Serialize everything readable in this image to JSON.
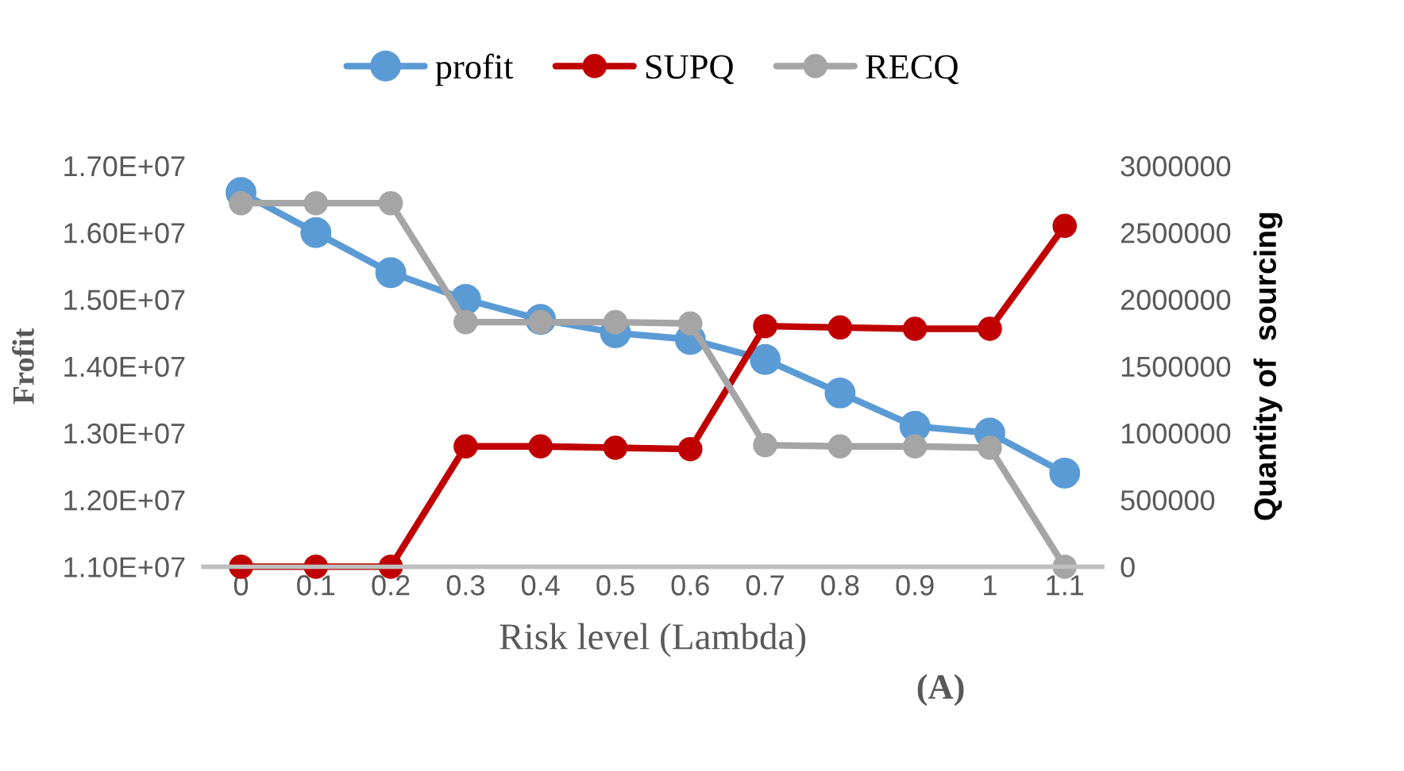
{
  "chart_data": {
    "type": "line",
    "xlabel": "Risk level (Lambda)",
    "ylabel": "Frofit",
    "y2label": "Quantity of  sourcing",
    "annotations": [
      "(A)"
    ],
    "categories": [
      "0",
      "0.1",
      "0.2",
      "0.3",
      "0.4",
      "0.5",
      "0.6",
      "0.7",
      "0.8",
      "0.9",
      "1",
      "1.1"
    ],
    "series": [
      {
        "name": "profit",
        "color": "#5b9bd5",
        "values": [
          16600000,
          16000000,
          15400000,
          15000000,
          14700000,
          14500000,
          14400000,
          14100000,
          13600000,
          13100000,
          13000000,
          12400000
        ]
      },
      {
        "name": "SUPQ",
        "color": "#c00000",
        "axis": "y2",
        "values": [
          0,
          0,
          0,
          900000,
          900000,
          890000,
          880000,
          1800000,
          1790000,
          1780000,
          1780000,
          2550000
        ]
      },
      {
        "name": "RECQ",
        "color": "#a5a5a5",
        "axis": "y2",
        "values": [
          2720000,
          2720000,
          2720000,
          1830000,
          1830000,
          1830000,
          1820000,
          910000,
          900000,
          900000,
          890000,
          0
        ]
      }
    ],
    "ylim": [
      11000000,
      17000000
    ],
    "yticks": [
      {
        "value": 11000000,
        "label": "1.10E+07"
      },
      {
        "value": 12000000,
        "label": "1.20E+07"
      },
      {
        "value": 13000000,
        "label": "1.30E+07"
      },
      {
        "value": 14000000,
        "label": "1.40E+07"
      },
      {
        "value": 15000000,
        "label": "1.50E+07"
      },
      {
        "value": 16000000,
        "label": "1.60E+07"
      },
      {
        "value": 17000000,
        "label": "1.70E+07"
      }
    ],
    "y2lim": [
      0,
      3000000
    ],
    "y2ticks": [
      0,
      500000,
      1000000,
      1500000,
      2000000,
      2500000,
      3000000
    ],
    "grid": false,
    "legend": "top",
    "marker": "circle",
    "line_style": "solid"
  }
}
